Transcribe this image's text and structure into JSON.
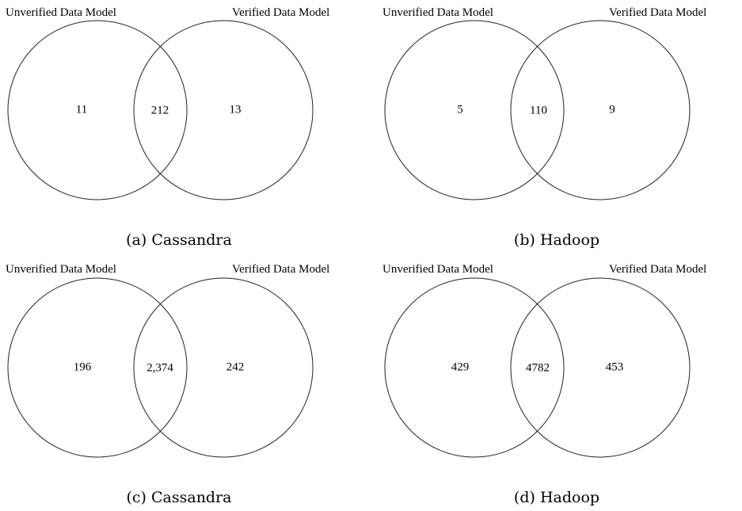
{
  "panels": [
    {
      "left_set": "Unverified Data Model",
      "right_set": "Verified Data Model",
      "left_only": "11",
      "both": "212",
      "right_only": "13",
      "caption": "(a) Cassandra"
    },
    {
      "left_set": "Unverified Data Model",
      "right_set": "Verified Data Model",
      "left_only": "5",
      "both": "110",
      "right_only": "9",
      "caption": "(b) Hadoop"
    },
    {
      "left_set": "Unverified Data Model",
      "right_set": "Verified Data Model",
      "left_only": "196",
      "both": "2,374",
      "right_only": "242",
      "caption": "(c) Cassandra"
    },
    {
      "left_set": "Unverified Data Model",
      "right_set": "Verified Data Model",
      "left_only": "429",
      "both": "4782",
      "right_only": "453",
      "caption": "(d) Hadoop"
    }
  ]
}
